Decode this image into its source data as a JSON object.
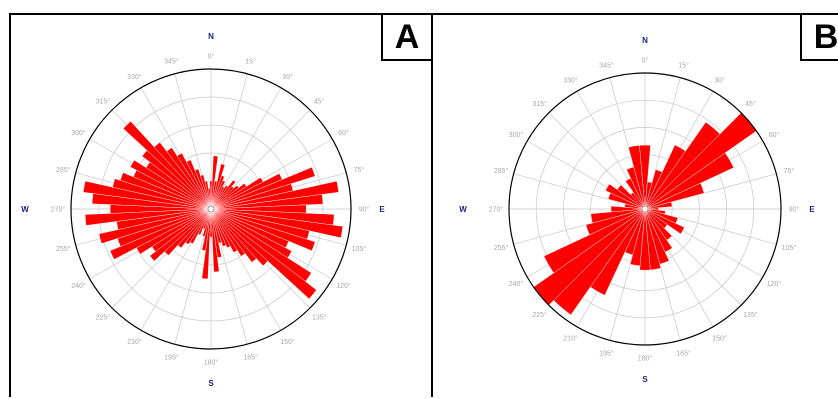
{
  "colors": {
    "bars": "#ff0000",
    "grid": "#c8c8c8",
    "outline": "#000000",
    "cardinal": "#1a237e",
    "degree_labels": "#a8a8a8"
  },
  "chart_data": [
    {
      "type": "rose",
      "panel_label": "A",
      "cardinals": {
        "N": "N",
        "E": "E",
        "S": "S",
        "W": "W"
      },
      "direction_labels": [
        "0°",
        "15°",
        "30°",
        "45°",
        "60°",
        "75°",
        "90°",
        "105°",
        "120°",
        "135°",
        "150°",
        "165°",
        "180°",
        "195°",
        "210°",
        "225°",
        "240°",
        "255°",
        "270°",
        "285°",
        "300°",
        "315°",
        "330°",
        "345°"
      ],
      "bin_width_deg": 5,
      "radial_max": 1.0,
      "grid_rings": 5,
      "bins": [
        {
          "az": 0,
          "r": 0.2
        },
        {
          "az": 5,
          "r": 0.38
        },
        {
          "az": 10,
          "r": 0.2
        },
        {
          "az": 15,
          "r": 0.33
        },
        {
          "az": 20,
          "r": 0.25
        },
        {
          "az": 25,
          "r": 0.22
        },
        {
          "az": 30,
          "r": 0.18
        },
        {
          "az": 35,
          "r": 0.2
        },
        {
          "az": 40,
          "r": 0.26
        },
        {
          "az": 45,
          "r": 0.22
        },
        {
          "az": 50,
          "r": 0.25
        },
        {
          "az": 55,
          "r": 0.3
        },
        {
          "az": 60,
          "r": 0.42
        },
        {
          "az": 65,
          "r": 0.55
        },
        {
          "az": 70,
          "r": 0.78
        },
        {
          "az": 75,
          "r": 0.6
        },
        {
          "az": 80,
          "r": 0.92
        },
        {
          "az": 85,
          "r": 0.8
        },
        {
          "az": 90,
          "r": 0.68
        },
        {
          "az": 95,
          "r": 0.88
        },
        {
          "az": 100,
          "r": 0.95
        },
        {
          "az": 105,
          "r": 0.72
        },
        {
          "az": 110,
          "r": 0.78
        },
        {
          "az": 115,
          "r": 0.6
        },
        {
          "az": 120,
          "r": 0.65
        },
        {
          "az": 125,
          "r": 0.85
        },
        {
          "az": 130,
          "r": 0.95
        },
        {
          "az": 135,
          "r": 0.55
        },
        {
          "az": 140,
          "r": 0.48
        },
        {
          "az": 145,
          "r": 0.4
        },
        {
          "az": 150,
          "r": 0.35
        },
        {
          "az": 155,
          "r": 0.3
        },
        {
          "az": 160,
          "r": 0.28
        },
        {
          "az": 165,
          "r": 0.25
        },
        {
          "az": 170,
          "r": 0.35
        },
        {
          "az": 175,
          "r": 0.45
        },
        {
          "az": 180,
          "r": 0.2
        },
        {
          "az": 185,
          "r": 0.5
        },
        {
          "az": 190,
          "r": 0.3
        },
        {
          "az": 195,
          "r": 0.2
        },
        {
          "az": 200,
          "r": 0.15
        },
        {
          "az": 205,
          "r": 0.2
        },
        {
          "az": 210,
          "r": 0.28
        },
        {
          "az": 215,
          "r": 0.3
        },
        {
          "az": 220,
          "r": 0.35
        },
        {
          "az": 225,
          "r": 0.45
        },
        {
          "az": 230,
          "r": 0.55
        },
        {
          "az": 235,
          "r": 0.5
        },
        {
          "az": 240,
          "r": 0.6
        },
        {
          "az": 245,
          "r": 0.78
        },
        {
          "az": 250,
          "r": 0.7
        },
        {
          "az": 255,
          "r": 0.82
        },
        {
          "az": 260,
          "r": 0.68
        },
        {
          "az": 265,
          "r": 0.9
        },
        {
          "az": 270,
          "r": 0.72
        },
        {
          "az": 275,
          "r": 0.85
        },
        {
          "az": 280,
          "r": 0.92
        },
        {
          "az": 285,
          "r": 0.72
        },
        {
          "az": 290,
          "r": 0.68
        },
        {
          "az": 295,
          "r": 0.6
        },
        {
          "az": 300,
          "r": 0.65
        },
        {
          "az": 305,
          "r": 0.55
        },
        {
          "az": 310,
          "r": 0.62
        },
        {
          "az": 315,
          "r": 0.85
        },
        {
          "az": 320,
          "r": 0.6
        },
        {
          "az": 325,
          "r": 0.52
        },
        {
          "az": 330,
          "r": 0.45
        },
        {
          "az": 335,
          "r": 0.38
        },
        {
          "az": 340,
          "r": 0.3
        },
        {
          "az": 345,
          "r": 0.25
        },
        {
          "az": 350,
          "r": 0.2
        },
        {
          "az": 355,
          "r": 0.15
        }
      ]
    },
    {
      "type": "rose",
      "panel_label": "B",
      "cardinals": {
        "N": "N",
        "E": "E",
        "S": "S",
        "W": "W"
      },
      "direction_labels": [
        "0°",
        "15°",
        "30°",
        "45°",
        "60°",
        "75°",
        "90°",
        "105°",
        "120°",
        "135°",
        "150°",
        "165°",
        "180°",
        "195°",
        "210°",
        "225°",
        "240°",
        "255°",
        "270°",
        "285°",
        "300°",
        "315°",
        "330°",
        "345°"
      ],
      "bin_width_deg": 10,
      "radial_max": 1.0,
      "grid_rings": 5,
      "bins": [
        {
          "az": 0,
          "r": 0.47
        },
        {
          "az": 10,
          "r": 0.2
        },
        {
          "az": 20,
          "r": 0.3
        },
        {
          "az": 30,
          "r": 0.52
        },
        {
          "az": 40,
          "r": 0.78
        },
        {
          "az": 50,
          "r": 1.0
        },
        {
          "az": 60,
          "r": 0.72
        },
        {
          "az": 70,
          "r": 0.45
        },
        {
          "az": 80,
          "r": 0.2
        },
        {
          "az": 90,
          "r": 0.1
        },
        {
          "az": 100,
          "r": 0.15
        },
        {
          "az": 110,
          "r": 0.25
        },
        {
          "az": 120,
          "r": 0.32
        },
        {
          "az": 130,
          "r": 0.2
        },
        {
          "az": 140,
          "r": 0.28
        },
        {
          "az": 150,
          "r": 0.35
        },
        {
          "az": 160,
          "r": 0.42
        },
        {
          "az": 170,
          "r": 0.45
        },
        {
          "az": 180,
          "r": 0.45
        },
        {
          "az": 190,
          "r": 0.42
        },
        {
          "az": 200,
          "r": 0.35
        },
        {
          "az": 210,
          "r": 0.7
        },
        {
          "az": 220,
          "r": 0.95
        },
        {
          "az": 230,
          "r": 1.0
        },
        {
          "az": 240,
          "r": 0.82
        },
        {
          "az": 250,
          "r": 0.45
        },
        {
          "az": 260,
          "r": 0.4
        },
        {
          "az": 270,
          "r": 0.25
        },
        {
          "az": 280,
          "r": 0.15
        },
        {
          "az": 290,
          "r": 0.28
        },
        {
          "az": 300,
          "r": 0.32
        },
        {
          "az": 310,
          "r": 0.25
        },
        {
          "az": 320,
          "r": 0.15
        },
        {
          "az": 330,
          "r": 0.25
        },
        {
          "az": 340,
          "r": 0.32
        },
        {
          "az": 350,
          "r": 0.47
        }
      ]
    }
  ]
}
